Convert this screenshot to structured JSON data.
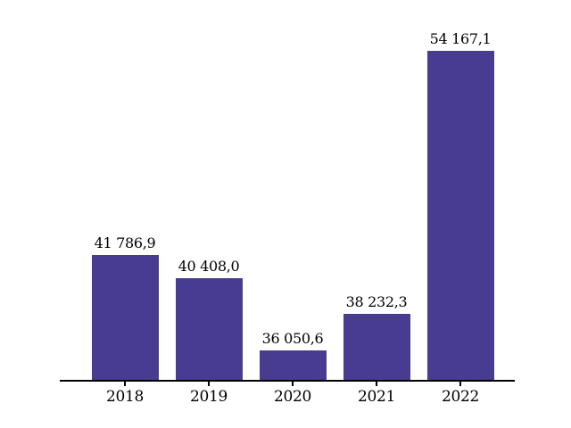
{
  "chart_data": {
    "type": "bar",
    "categories": [
      "2018",
      "2019",
      "2020",
      "2021",
      "2022"
    ],
    "values": [
      41786.9,
      40408.0,
      36050.6,
      38232.3,
      54167.1
    ],
    "value_labels": [
      "41 786,9",
      "40 408,0",
      "36 050,6",
      "38 232,3",
      "54 167,1"
    ],
    "title": "",
    "xlabel": "",
    "ylabel": "",
    "ylim": [
      34250,
      55500
    ],
    "grid": false,
    "legend_position": "none",
    "data_labels_position": "above-bars",
    "colors": {
      "bar": "#473C8F",
      "axis": "#000000",
      "text": "#000000",
      "background": "#FFFFFF"
    }
  }
}
